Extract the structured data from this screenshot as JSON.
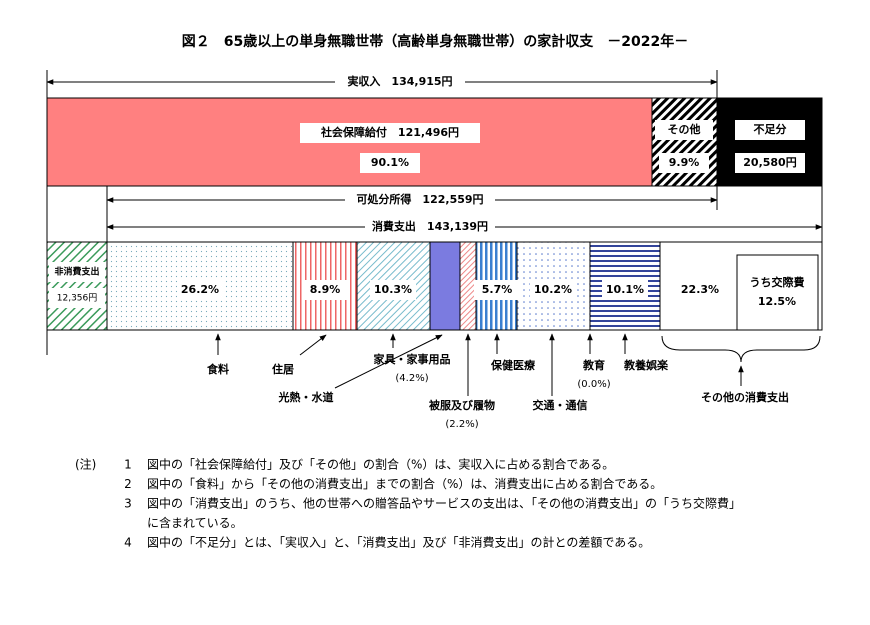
{
  "title": "図２　65歳以上の単身無職世帯（高齢単身無職世帯）の家計収支　－2022年－",
  "top_bar": {
    "total": "実収入　134,915円",
    "segments": [
      {
        "name": "社会保障給付　121,496円",
        "share": "90.1%"
      },
      {
        "name": "その他",
        "share": "9.9%"
      },
      {
        "name": "不足分",
        "amount": "20,580円"
      }
    ]
  },
  "disposable": "可処分所得　122,559円",
  "consumption": "消費支出　143,139円",
  "bottom_bar": {
    "non_consumption": {
      "name": "非消費支出",
      "amount": "12,356円"
    },
    "shares": [
      "26.2%",
      "8.9%",
      "10.3%",
      "5.7%",
      "10.2%",
      "10.1%",
      "22.3%"
    ],
    "inner": {
      "name": "うち交際費",
      "share": "12.5%"
    }
  },
  "labels": [
    {
      "name": "食料"
    },
    {
      "name": "住居"
    },
    {
      "name": "光熱・水道"
    },
    {
      "name": "家具・家事用品",
      "share": "(4.2%)"
    },
    {
      "name": "被服及び履物",
      "share": "(2.2%)"
    },
    {
      "name": "保健医療"
    },
    {
      "name": "交通・通信"
    },
    {
      "name": "教育",
      "share": "(0.0%)"
    },
    {
      "name": "教養娯楽"
    },
    {
      "name": "その他の消費支出"
    }
  ],
  "notes": {
    "marker": "(注)",
    "items": [
      {
        "number": "1",
        "lines": [
          "図中の「社会保障給付」及び「その他」の割合（%）は、実収入に占める割合である。"
        ]
      },
      {
        "number": "2",
        "lines": [
          "図中の「食料」から「その他の消費支出」までの割合（%）は、消費支出に占める割合である。"
        ]
      },
      {
        "number": "3",
        "lines": [
          "図中の「消費支出」のうち、他の世帯への贈答品やサービスの支出は、「その他の消費支出」の「うち交際費」",
          "に含まれている。"
        ]
      },
      {
        "number": "4",
        "lines": [
          "図中の「不足分」とは、「実収入」と、「消費支出」及び「非消費支出」の計との差額である。"
        ]
      }
    ]
  }
}
